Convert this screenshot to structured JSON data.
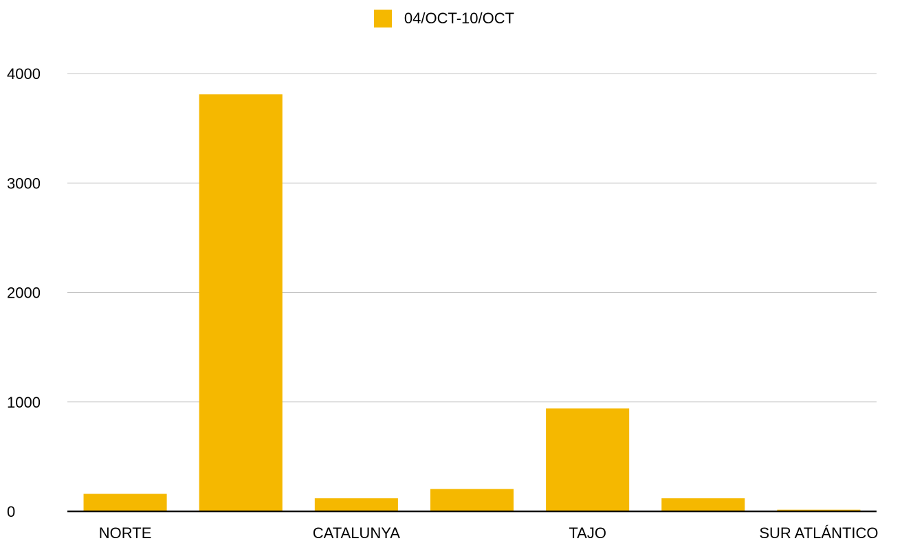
{
  "chart_data": {
    "type": "bar",
    "title": "",
    "xlabel": "",
    "ylabel": "",
    "categories": [
      "NORTE",
      "",
      "CATALUNYA",
      "",
      "TAJO",
      "",
      "SUR ATLÁNTICO"
    ],
    "series": [
      {
        "name": "04/OCT-10/OCT",
        "color": "#F5B800",
        "values": [
          160,
          3810,
          120,
          205,
          940,
          120,
          15
        ]
      }
    ],
    "ylim": [
      0,
      4000
    ],
    "yticks": [
      0,
      1000,
      2000,
      3000,
      4000
    ],
    "grid": true,
    "legend_position": "top-center"
  }
}
